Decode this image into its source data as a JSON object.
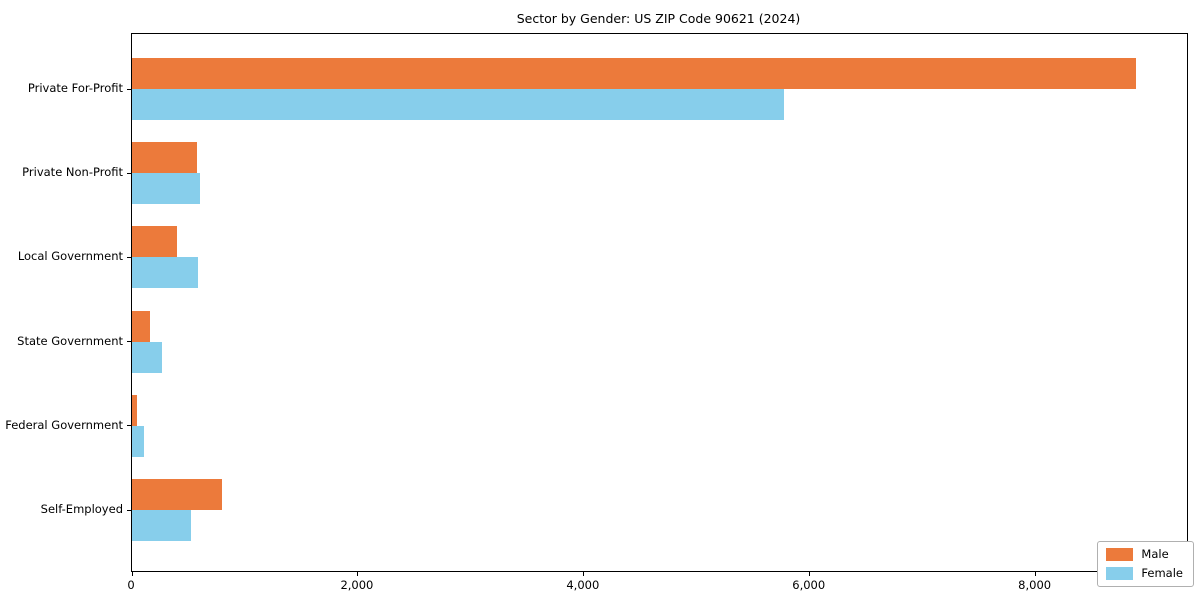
{
  "chart_data": {
    "type": "bar",
    "orientation": "horizontal",
    "title": "Sector by Gender: US ZIP Code 90621 (2024)",
    "categories": [
      "Private For-Profit",
      "Private Non-Profit",
      "Local Government",
      "State Government",
      "Federal Government",
      "Self-Employed"
    ],
    "series": [
      {
        "name": "Male",
        "color": "#EC7A3B",
        "values": [
          8885,
          575,
          400,
          160,
          45,
          795
        ]
      },
      {
        "name": "Female",
        "color": "#87CEEB",
        "values": [
          5770,
          600,
          585,
          265,
          105,
          520
        ]
      }
    ],
    "xlabel": "",
    "ylabel": "",
    "xlim": [
      0,
      9340
    ],
    "xticks": [
      {
        "value": 0,
        "label": "0"
      },
      {
        "value": 2000,
        "label": "2,000"
      },
      {
        "value": 4000,
        "label": "4,000"
      },
      {
        "value": 6000,
        "label": "6,000"
      },
      {
        "value": 8000,
        "label": "8,000"
      }
    ],
    "grid": false,
    "legend_position": "lower right"
  }
}
